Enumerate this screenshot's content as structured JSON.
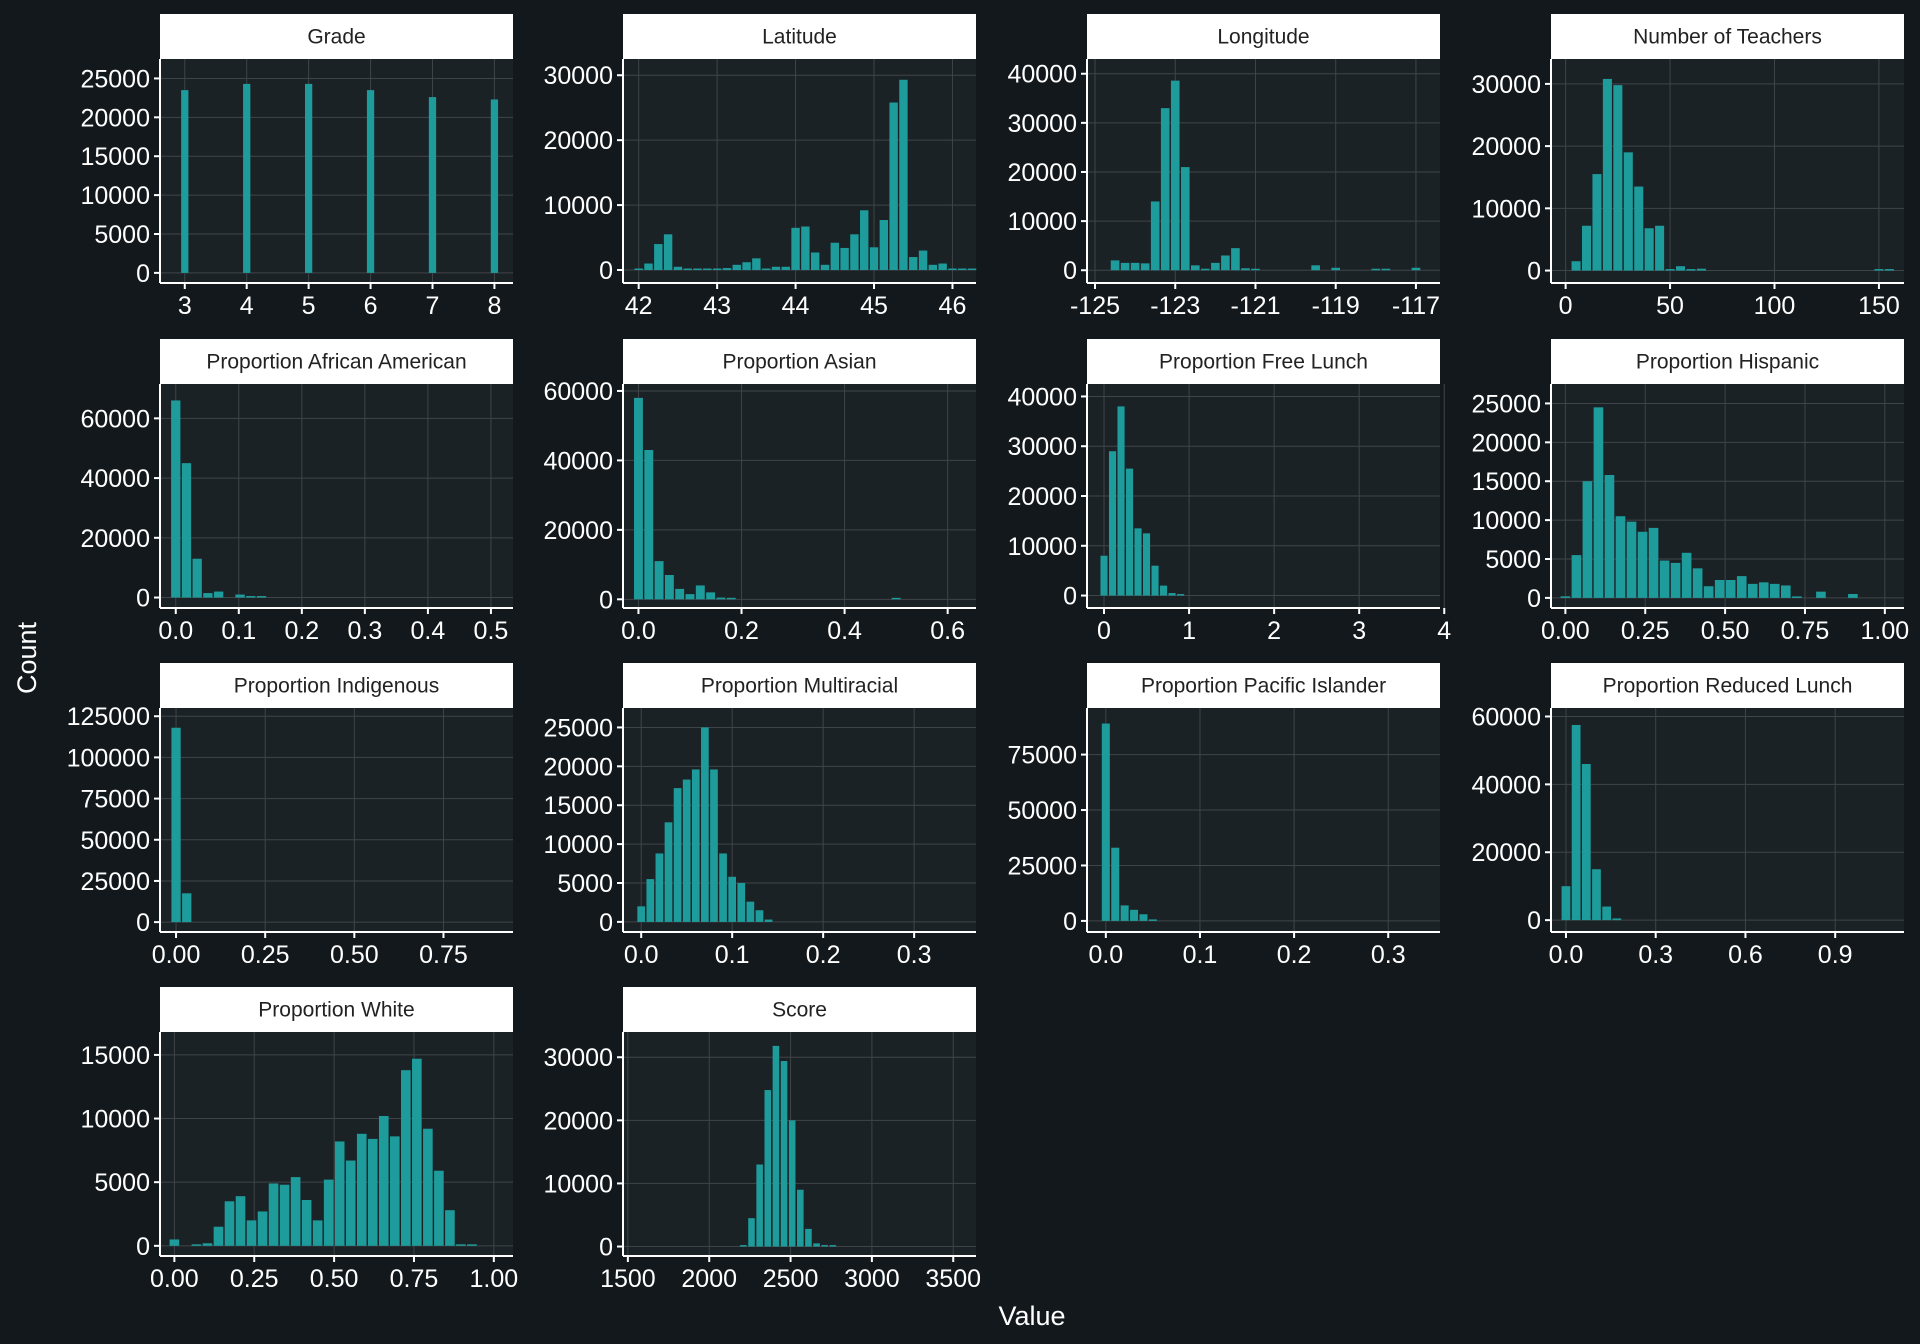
{
  "figure": {
    "xlabel": "Value",
    "ylabel": "Count",
    "colors": {
      "background": "#12181c",
      "panel": "#1b2226",
      "grid": "#3f4448",
      "bar": "#1e9b9b",
      "strip": "#ffffff",
      "text": "#ffffff"
    }
  },
  "chart_data": [
    {
      "type": "bar",
      "title": "Grade",
      "xlim": [
        2.6,
        8.3
      ],
      "ylim": [
        -1300,
        27500
      ],
      "xticks": [
        3,
        4,
        5,
        6,
        7,
        8
      ],
      "xtick_labels": [
        "3",
        "4",
        "5",
        "6",
        "7",
        "8"
      ],
      "yticks": [
        0,
        5000,
        10000,
        15000,
        20000,
        25000
      ],
      "binwidth": 0.14,
      "x": [
        3,
        4,
        5,
        6,
        7,
        8
      ],
      "values": [
        23500,
        24300,
        24300,
        23500,
        22600,
        22300
      ]
    },
    {
      "type": "bar",
      "title": "Latitude",
      "xlim": [
        41.8,
        46.3
      ],
      "ylim": [
        -2000,
        32500
      ],
      "xticks": [
        42,
        43,
        44,
        45,
        46
      ],
      "xtick_labels": [
        "42",
        "43",
        "44",
        "45",
        "46"
      ],
      "yticks": [
        0,
        10000,
        20000,
        30000
      ],
      "binwidth": 0.125,
      "x": [
        42.0,
        42.125,
        42.25,
        42.375,
        42.5,
        42.625,
        42.75,
        42.875,
        43.0,
        43.125,
        43.25,
        43.375,
        43.5,
        43.625,
        43.75,
        43.875,
        44.0,
        44.125,
        44.25,
        44.375,
        44.5,
        44.625,
        44.75,
        44.875,
        45.0,
        45.125,
        45.25,
        45.375,
        45.5,
        45.625,
        45.75,
        45.875,
        46.0,
        46.125,
        46.25
      ],
      "values": [
        0,
        1000,
        4000,
        5500,
        500,
        0,
        0,
        0,
        0,
        300,
        800,
        1200,
        1800,
        0,
        500,
        500,
        6500,
        6700,
        2700,
        800,
        4200,
        3400,
        5500,
        9200,
        3500,
        7700,
        25800,
        29300,
        2000,
        3000,
        800,
        1000,
        0,
        0,
        0
      ]
    },
    {
      "type": "bar",
      "title": "Longitude",
      "xlim": [
        -125.2,
        -116.4
      ],
      "ylim": [
        -2600,
        43000
      ],
      "xticks": [
        -125,
        -123,
        -121,
        -119,
        -117
      ],
      "xtick_labels": [
        "-125",
        "-123",
        "-121",
        "-119",
        "-117"
      ],
      "yticks": [
        0,
        10000,
        20000,
        30000,
        40000
      ],
      "binwidth": 0.25,
      "x": [
        -124.5,
        -124.25,
        -124.0,
        -123.75,
        -123.5,
        -123.25,
        -123.0,
        -122.75,
        -122.5,
        -122.25,
        -122.0,
        -121.75,
        -121.5,
        -121.25,
        -121.0,
        -119.5,
        -119.0,
        -118.0,
        -117.75,
        -117.0
      ],
      "values": [
        2000,
        1500,
        1500,
        1400,
        14000,
        33000,
        38600,
        21000,
        1000,
        0,
        1500,
        3000,
        4500,
        400,
        0,
        1000,
        500,
        200,
        300,
        500
      ]
    },
    {
      "type": "bar",
      "title": "Number of Teachers",
      "xlim": [
        -7,
        162
      ],
      "ylim": [
        -2000,
        34000
      ],
      "xticks": [
        0,
        50,
        100,
        150
      ],
      "xtick_labels": [
        "0",
        "50",
        "100",
        "150"
      ],
      "yticks": [
        0,
        10000,
        20000,
        30000
      ],
      "binwidth": 5,
      "x": [
        5,
        10,
        15,
        20,
        25,
        30,
        35,
        40,
        45,
        50,
        55,
        60,
        65,
        150,
        155
      ],
      "values": [
        1500,
        7200,
        15500,
        30800,
        29800,
        19000,
        13500,
        6800,
        7200,
        0,
        700,
        0,
        300,
        200,
        0
      ]
    },
    {
      "type": "bar",
      "title": "Proportion African American",
      "xlim": [
        -0.025,
        0.535
      ],
      "ylim": [
        -3500,
        71500
      ],
      "xticks": [
        0.0,
        0.1,
        0.2,
        0.3,
        0.4,
        0.5
      ],
      "xtick_labels": [
        "0.0",
        "0.1",
        "0.2",
        "0.3",
        "0.4",
        "0.5"
      ],
      "yticks": [
        0,
        20000,
        40000,
        60000
      ],
      "binwidth": 0.017,
      "x": [
        0.0,
        0.017,
        0.034,
        0.051,
        0.068,
        0.102,
        0.119,
        0.136
      ],
      "values": [
        66000,
        45000,
        13000,
        1500,
        2000,
        1000,
        500,
        200
      ]
    },
    {
      "type": "bar",
      "title": "Proportion Asian",
      "xlim": [
        -0.03,
        0.655
      ],
      "ylim": [
        -2500,
        62000
      ],
      "xticks": [
        0.0,
        0.2,
        0.4,
        0.6
      ],
      "xtick_labels": [
        "0.0",
        "0.2",
        "0.4",
        "0.6"
      ],
      "yticks": [
        0,
        20000,
        40000,
        60000
      ],
      "binwidth": 0.02,
      "x": [
        0.0,
        0.02,
        0.04,
        0.06,
        0.08,
        0.1,
        0.12,
        0.14,
        0.16,
        0.18,
        0.5
      ],
      "values": [
        58000,
        43000,
        11000,
        7000,
        3000,
        1500,
        4000,
        2000,
        500,
        300,
        200
      ]
    },
    {
      "type": "bar",
      "title": "Proportion Free Lunch",
      "xlim": [
        -0.2,
        3.95
      ],
      "ylim": [
        -2500,
        42500
      ],
      "xticks": [
        0,
        1,
        2,
        3,
        4
      ],
      "xtick_labels": [
        "0",
        "1",
        "2",
        "3",
        "4"
      ],
      "yticks": [
        0,
        10000,
        20000,
        30000,
        40000
      ],
      "binwidth": 0.1,
      "x": [
        0.0,
        0.1,
        0.2,
        0.3,
        0.4,
        0.5,
        0.6,
        0.7,
        0.8,
        0.9
      ],
      "values": [
        8000,
        29000,
        38000,
        25500,
        13500,
        12500,
        6000,
        2000,
        500,
        0
      ]
    },
    {
      "type": "bar",
      "title": "Proportion Hispanic",
      "xlim": [
        -0.045,
        1.06
      ],
      "ylim": [
        -1300,
        27500
      ],
      "xticks": [
        0.0,
        0.25,
        0.5,
        0.75,
        1.0
      ],
      "xtick_labels": [
        "0.00",
        "0.25",
        "0.50",
        "0.75",
        "1.00"
      ],
      "yticks": [
        0,
        5000,
        10000,
        15000,
        20000,
        25000
      ],
      "binwidth": 0.0345,
      "x": [
        0.0,
        0.0345,
        0.069,
        0.1035,
        0.138,
        0.1725,
        0.207,
        0.2415,
        0.276,
        0.3105,
        0.345,
        0.3795,
        0.414,
        0.4485,
        0.483,
        0.5175,
        0.552,
        0.5865,
        0.621,
        0.6555,
        0.69,
        0.7245,
        0.8,
        0.9
      ],
      "values": [
        200,
        5500,
        15000,
        24500,
        15800,
        10500,
        9800,
        8500,
        9000,
        4800,
        4500,
        5800,
        3800,
        1500,
        2300,
        2300,
        2800,
        1800,
        2000,
        1800,
        1600,
        0,
        800,
        500
      ]
    },
    {
      "type": "bar",
      "title": "Proportion Indigenous",
      "xlim": [
        -0.045,
        0.945
      ],
      "ylim": [
        -6000,
        130000
      ],
      "xticks": [
        0.0,
        0.25,
        0.5,
        0.75
      ],
      "xtick_labels": [
        "0.00",
        "0.25",
        "0.50",
        "0.75"
      ],
      "yticks": [
        0,
        25000,
        50000,
        75000,
        100000,
        125000
      ],
      "binwidth": 0.03,
      "x": [
        0.0,
        0.03
      ],
      "values": [
        118000,
        17500
      ]
    },
    {
      "type": "bar",
      "title": "Proportion Multiracial",
      "xlim": [
        -0.02,
        0.368
      ],
      "ylim": [
        -1300,
        27500
      ],
      "xticks": [
        0.0,
        0.1,
        0.2,
        0.3
      ],
      "xtick_labels": [
        "0.0",
        "0.1",
        "0.2",
        "0.3"
      ],
      "yticks": [
        0,
        5000,
        10000,
        15000,
        20000,
        25000
      ],
      "binwidth": 0.01,
      "x": [
        0.0,
        0.01,
        0.02,
        0.03,
        0.04,
        0.05,
        0.06,
        0.07,
        0.08,
        0.09,
        0.1,
        0.11,
        0.12,
        0.13,
        0.14
      ],
      "values": [
        2000,
        5500,
        8800,
        12800,
        17200,
        18300,
        19600,
        25000,
        19600,
        8800,
        5800,
        5000,
        2600,
        1500,
        300
      ]
    },
    {
      "type": "bar",
      "title": "Proportion Pacific Islander",
      "xlim": [
        -0.02,
        0.355
      ],
      "ylim": [
        -5000,
        96000
      ],
      "xticks": [
        0.0,
        0.1,
        0.2,
        0.3
      ],
      "xtick_labels": [
        "0.0",
        "0.1",
        "0.2",
        "0.3"
      ],
      "yticks": [
        0,
        25000,
        50000,
        75000
      ],
      "binwidth": 0.01,
      "x": [
        0.0,
        0.01,
        0.02,
        0.03,
        0.04,
        0.05
      ],
      "values": [
        89000,
        33000,
        7000,
        5000,
        3000,
        0
      ]
    },
    {
      "type": "bar",
      "title": "Proportion Reduced Lunch",
      "xlim": [
        -0.05,
        1.13
      ],
      "ylim": [
        -3500,
        62500
      ],
      "xticks": [
        0.0,
        0.3,
        0.6,
        0.9
      ],
      "xtick_labels": [
        "0.0",
        "0.3",
        "0.6",
        "0.9"
      ],
      "yticks": [
        0,
        20000,
        40000,
        60000
      ],
      "binwidth": 0.034,
      "x": [
        0.0,
        0.034,
        0.068,
        0.102,
        0.136,
        0.17
      ],
      "values": [
        10000,
        57500,
        46000,
        15000,
        4000,
        500
      ]
    },
    {
      "type": "bar",
      "title": "Proportion White",
      "xlim": [
        -0.045,
        1.06
      ],
      "ylim": [
        -800,
        16800
      ],
      "xticks": [
        0.0,
        0.25,
        0.5,
        0.75,
        1.0
      ],
      "xtick_labels": [
        "0.00",
        "0.25",
        "0.50",
        "0.75",
        "1.00"
      ],
      "yticks": [
        0,
        5000,
        10000,
        15000
      ],
      "binwidth": 0.0345,
      "x": [
        0.0,
        0.069,
        0.1035,
        0.138,
        0.1725,
        0.207,
        0.2415,
        0.276,
        0.3105,
        0.345,
        0.3795,
        0.414,
        0.4485,
        0.483,
        0.5175,
        0.552,
        0.5865,
        0.621,
        0.6555,
        0.69,
        0.7245,
        0.759,
        0.7935,
        0.828,
        0.8625,
        0.897,
        0.9315
      ],
      "values": [
        500,
        100,
        200,
        1500,
        3500,
        3900,
        2000,
        2700,
        4900,
        4800,
        5400,
        3600,
        2000,
        5200,
        8200,
        6700,
        8800,
        8400,
        10200,
        8600,
        13800,
        14700,
        9200,
        5900,
        2800,
        100,
        0
      ]
    },
    {
      "type": "bar",
      "title": "Score",
      "xlim": [
        1470,
        3640
      ],
      "ylim": [
        -1500,
        34000
      ],
      "xticks": [
        1500,
        2000,
        2500,
        3000,
        3500
      ],
      "xtick_labels": [
        "1500",
        "2000",
        "2500",
        "3000",
        "3500"
      ],
      "yticks": [
        0,
        10000,
        20000,
        30000
      ],
      "binwidth": 49,
      "x": [
        2210,
        2260,
        2310,
        2360,
        2410,
        2460,
        2510,
        2560,
        2610,
        2660,
        2710,
        2760
      ],
      "values": [
        0,
        4500,
        13000,
        24800,
        31800,
        29400,
        20000,
        9000,
        2800,
        500,
        0,
        0
      ]
    }
  ]
}
